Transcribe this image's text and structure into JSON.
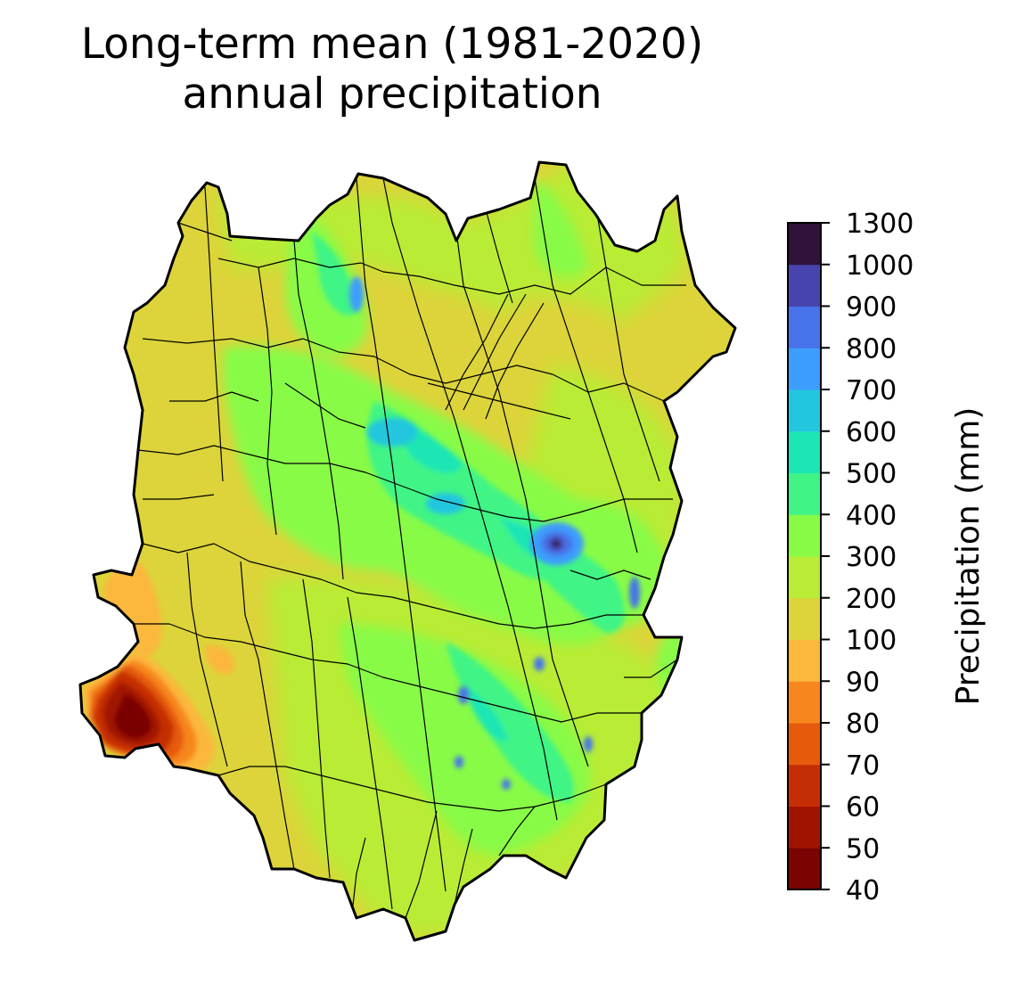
{
  "title": {
    "line1": "Long-term mean (1981-2020)",
    "line2": "annual precipitation"
  },
  "colorbar": {
    "label": "Precipitation (mm)",
    "levels": [
      "40",
      "50",
      "60",
      "70",
      "80",
      "90",
      "100",
      "200",
      "300",
      "400",
      "500",
      "600",
      "700",
      "800",
      "900",
      "1000",
      "1300"
    ],
    "colors": [
      "#7a0403",
      "#a11301",
      "#c52e04",
      "#e65a0b",
      "#f7861d",
      "#fbb83c",
      "#dcd43a",
      "#b9ec36",
      "#88fb47",
      "#40f486",
      "#1ce6b4",
      "#23c6df",
      "#3d9dfd",
      "#4673ea",
      "#4745ad",
      "#30123b"
    ]
  },
  "map": {
    "region_name": "",
    "background_color": "#dcd43a",
    "outline_color": "#000000",
    "subbasin_line_color": "#000000"
  }
}
